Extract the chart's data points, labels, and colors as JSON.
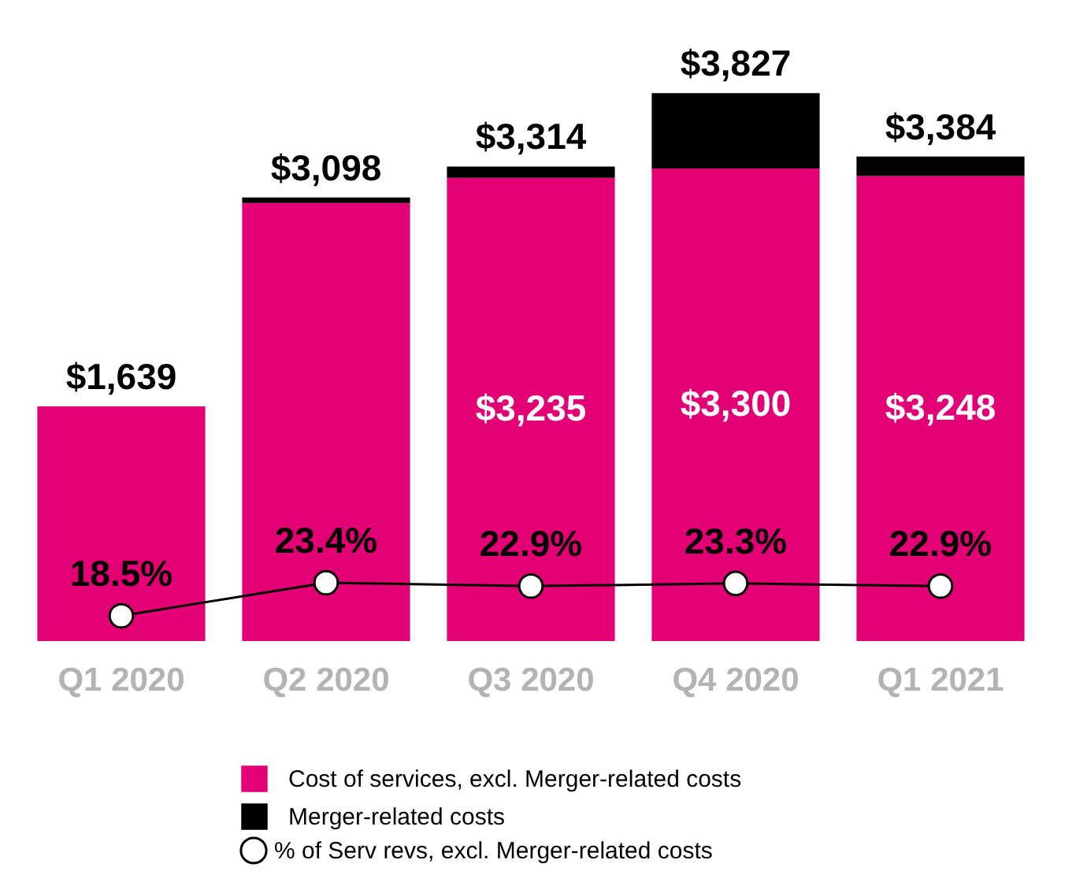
{
  "chart_data": {
    "type": "bar",
    "stacked": true,
    "categories": [
      "Q1 2020",
      "Q2 2020",
      "Q3 2020",
      "Q4 2020",
      "Q1 2021"
    ],
    "ylim": [
      0,
      3850
    ],
    "tick_labels": "x",
    "legend": "bottom",
    "series": [
      {
        "name": "Cost of services, excl. Merger-related costs",
        "color": "#e20074",
        "values": [
          1639,
          3060,
          3235,
          3300,
          3248
        ],
        "value_labels": [
          null,
          null,
          "$3,235",
          "$3,300",
          "$3,248"
        ]
      },
      {
        "name": "Merger-related costs",
        "color": "#000000",
        "values": [
          0,
          38,
          79,
          527,
          136
        ]
      },
      {
        "name": "% of Serv revs, excl. Merger-related costs",
        "type": "line",
        "axis": "y2",
        "color": "#000000",
        "marker": "circle",
        "values": [
          18.5,
          23.4,
          22.9,
          23.3,
          22.9
        ],
        "value_labels": [
          "18.5%",
          "23.4%",
          "22.9%",
          "23.3%",
          "22.9%"
        ]
      }
    ],
    "totals": [
      "$1,639",
      "$3,098",
      "$3,314",
      "$3,827",
      "$3,384"
    ]
  }
}
